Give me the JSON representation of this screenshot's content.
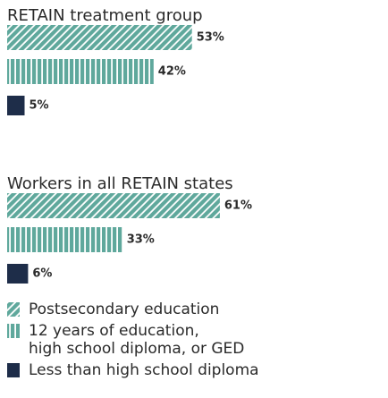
{
  "chart_data": {
    "type": "grouped-hbar",
    "categories": [
      "RETAIN treatment group",
      "Workers in all RETAIN states"
    ],
    "series": [
      {
        "name": "Postsecondary education",
        "color": "#5fa89c",
        "pattern": "diagonal",
        "values": [
          53,
          61
        ],
        "value_labels": [
          "53%",
          "61%"
        ]
      },
      {
        "name": "12 years of education, high school diploma, or GED",
        "color": "#5fa89c",
        "pattern": "vertical",
        "values": [
          42,
          33
        ],
        "value_labels": [
          "42%",
          "33%"
        ]
      },
      {
        "name": "Less than high school diploma",
        "color": "#1e2d49",
        "pattern": "solid",
        "values": [
          5,
          6
        ],
        "value_labels": [
          "5%",
          "6%"
        ]
      }
    ]
  }
}
